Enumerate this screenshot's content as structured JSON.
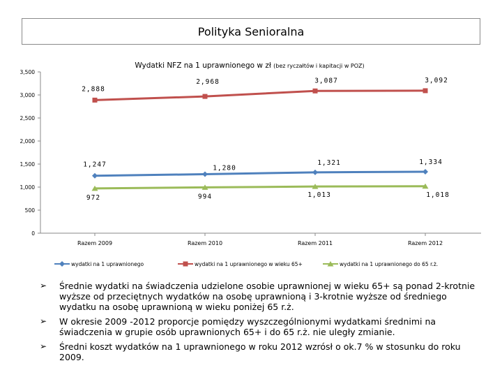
{
  "page": {
    "title": "Polityka Senioralna"
  },
  "chart_data": {
    "type": "line",
    "title": "Wydatki NFZ na 1 uprawnionego w zł",
    "title_note": "(bez ryczałtów i kapitacji w POZ)",
    "categories": [
      "Razem 2009",
      "Razem 2010",
      "Razem 2011",
      "Razem 2012"
    ],
    "y_ticks": [
      "0",
      "500",
      "1,000",
      "1,500",
      "2,000",
      "2,500",
      "3,000",
      "3,500"
    ],
    "ylim": [
      0,
      3500
    ],
    "series": [
      {
        "name": "wydatki na 1 uprawnionego",
        "color": "#4f81bd",
        "marker": "diamond",
        "values": [
          1247,
          1280,
          1321,
          1334
        ],
        "labels": [
          "1,247",
          "1,280",
          "1,321",
          "1,334"
        ]
      },
      {
        "name": "wydatki na 1 uprawnionego w wieku 65+",
        "color": "#c0504d",
        "marker": "square",
        "values": [
          2888,
          2968,
          3087,
          3092
        ],
        "labels": [
          "2,888",
          "2,968",
          "3,087",
          "3,092"
        ]
      },
      {
        "name": "wydatki na 1 uprawnionego do 65 r.ż.",
        "color": "#9bbb59",
        "marker": "triangle",
        "values": [
          972,
          994,
          1013,
          1018
        ],
        "labels": [
          "972",
          "994",
          "1,013",
          "1,018"
        ]
      }
    ]
  },
  "bullets": [
    {
      "mark": "➢",
      "text": "Średnie wydatki na świadczenia udzielone osobie uprawnionej w wieku 65+ są ponad 2-krotnie wyższe od przeciętnych wydatków na osobę uprawnioną i 3-krotnie wyższe od średniego wydatku na osobę uprawnioną w wieku poniżej 65 r.ż."
    },
    {
      "mark": "➢",
      "text": "W okresie 2009 -2012 proporcje pomiędzy wyszczególnionymi wydatkami średnimi na świadczenia w grupie osób uprawnionych 65+ i do 65 r.ż. nie uległy zmianie."
    },
    {
      "mark": "➢",
      "text": "Średni koszt wydatków na 1 uprawnionego w roku 2012 wzrósł o ok.7 % w stosunku do roku 2009."
    }
  ]
}
